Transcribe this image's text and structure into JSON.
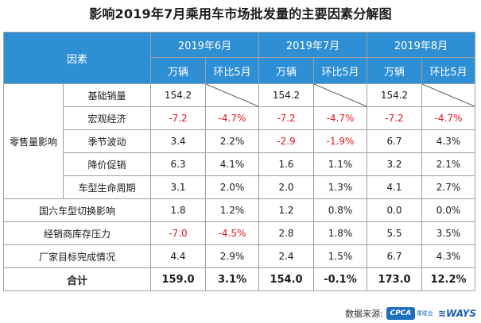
{
  "title": "影响2019年7月乘用车市场批发量的主要因素分解图",
  "header": {
    "factor_label": "因素",
    "months": [
      "2019年6月",
      "2019年7月",
      "2019年8月"
    ],
    "sub": [
      "万辆",
      "环比5月",
      "万辆",
      "环比5月",
      "万辆",
      "环比5月"
    ]
  },
  "group_label": "零售量影响",
  "rows": [
    {
      "label": "基础销量",
      "values": [
        "154.2",
        "",
        "154.2",
        "",
        "154.2",
        ""
      ]
    },
    {
      "label": "宏观经济",
      "values": [
        "-7.2",
        "-4.7%",
        "-7.2",
        "-4.7%",
        "-7.2",
        "-4.7%"
      ]
    },
    {
      "label": "季节波动",
      "values": [
        "3.4",
        "2.2%",
        "-2.9",
        "-1.9%",
        "6.7",
        "4.3%"
      ]
    },
    {
      "label": "降价促销",
      "values": [
        "6.3",
        "4.1%",
        "1.6",
        "1.1%",
        "3.2",
        "2.1%"
      ]
    },
    {
      "label": "车型生命周期",
      "values": [
        "3.1",
        "2.0%",
        "2.0",
        "1.3%",
        "4.1",
        "2.7%"
      ]
    }
  ],
  "other_rows": [
    {
      "label": "国六车型切换影响",
      "values": [
        "1.8",
        "1.2%",
        "1.2",
        "0.8%",
        "0.0",
        "0.0%"
      ]
    },
    {
      "label": "经销商库存压力",
      "values": [
        "-7.0",
        "-4.5%",
        "2.8",
        "1.8%",
        "5.5",
        "3.5%"
      ]
    },
    {
      "label": "厂家目标完成情况",
      "values": [
        "4.4",
        "2.9%",
        "2.4",
        "1.5%",
        "6.7",
        "4.3%"
      ]
    }
  ],
  "total": {
    "label": "合计",
    "values": [
      "159.0",
      "3.1%",
      "154.0",
      "-0.1%",
      "173.0",
      "12.2%"
    ]
  },
  "footer": {
    "source_label": "数据来源:",
    "cpca_logo": "CPCA",
    "cpca_sub": "乘联会",
    "ways_logo": "WAYS"
  },
  "colors": {
    "header_bg": "#2e8fd4",
    "negative": "#e0191f",
    "border": "#9aa0a6"
  }
}
